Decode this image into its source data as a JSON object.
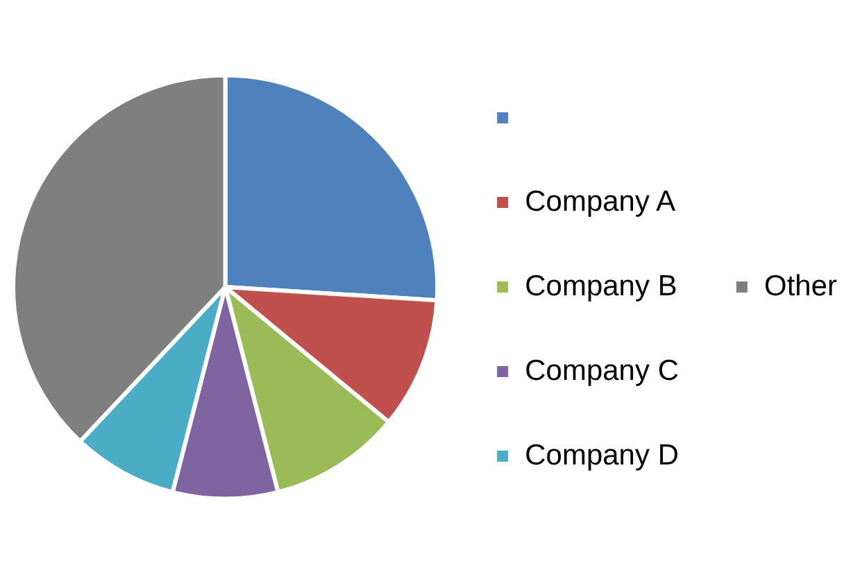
{
  "chart_data": {
    "type": "pie",
    "categories": [
      null,
      "Company A",
      "Company B",
      "Company C",
      "Company D",
      "Other"
    ],
    "values": [
      26,
      10,
      10,
      8,
      8,
      38
    ],
    "colors": [
      "#4f81bd",
      "#c0504d",
      "#9bbb59",
      "#8064a2",
      "#4bacc6",
      "#7f7f7f"
    ],
    "legend": "right"
  }
}
